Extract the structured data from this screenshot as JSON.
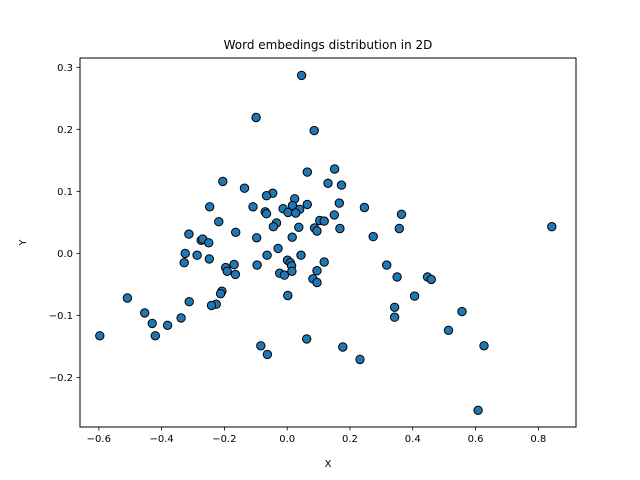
{
  "chart_data": {
    "type": "scatter",
    "title": "Word embedings distribution in 2D",
    "xlabel": "X",
    "ylabel": "Y",
    "xlim": [
      -0.66,
      0.92
    ],
    "ylim": [
      -0.28,
      0.315
    ],
    "xticks": [
      -0.6,
      -0.4,
      -0.2,
      0.0,
      0.2,
      0.4,
      0.6,
      0.8
    ],
    "xtick_labels": [
      "−0.6",
      "−0.4",
      "−0.2",
      "0.0",
      "0.2",
      "0.4",
      "0.6",
      "0.8"
    ],
    "yticks": [
      -0.2,
      -0.1,
      0.0,
      0.1,
      0.2,
      0.3
    ],
    "ytick_labels": [
      "−0.2",
      "−0.1",
      "0.0",
      "0.1",
      "0.2",
      "0.3"
    ],
    "grid": false,
    "marker_color": "#1f77b4",
    "marker_edge_color": "#000000",
    "points": [
      [
        0.046,
        0.287
      ],
      [
        -0.099,
        0.219
      ],
      [
        0.086,
        0.198
      ],
      [
        0.151,
        0.136
      ],
      [
        0.064,
        0.131
      ],
      [
        -0.205,
        0.116
      ],
      [
        0.13,
        0.113
      ],
      [
        0.173,
        0.11
      ],
      [
        -0.136,
        0.105
      ],
      [
        -0.046,
        0.097
      ],
      [
        -0.066,
        0.093
      ],
      [
        0.024,
        0.088
      ],
      [
        0.166,
        0.081
      ],
      [
        0.064,
        0.079
      ],
      [
        0.017,
        0.077
      ],
      [
        -0.247,
        0.075
      ],
      [
        -0.109,
        0.075
      ],
      [
        0.246,
        0.074
      ],
      [
        -0.013,
        0.072
      ],
      [
        0.04,
        0.071
      ],
      [
        -0.07,
        0.067
      ],
      [
        0.003,
        0.066
      ],
      [
        -0.066,
        0.064
      ],
      [
        0.027,
        0.065
      ],
      [
        0.364,
        0.063
      ],
      [
        0.15,
        0.062
      ],
      [
        0.104,
        0.053
      ],
      [
        0.118,
        0.052
      ],
      [
        -0.218,
        0.051
      ],
      [
        -0.034,
        0.049
      ],
      [
        -0.044,
        0.043
      ],
      [
        0.037,
        0.042
      ],
      [
        0.087,
        0.041
      ],
      [
        0.168,
        0.04
      ],
      [
        0.357,
        0.04
      ],
      [
        0.843,
        0.043
      ],
      [
        0.095,
        0.036
      ],
      [
        -0.313,
        0.031
      ],
      [
        -0.164,
        0.034
      ],
      [
        0.016,
        0.026
      ],
      [
        -0.097,
        0.025
      ],
      [
        0.274,
        0.027
      ],
      [
        -0.274,
        0.021
      ],
      [
        -0.269,
        0.023
      ],
      [
        -0.25,
        0.017
      ],
      [
        -0.029,
        0.008
      ],
      [
        -0.325,
        0.0
      ],
      [
        -0.064,
        -0.003
      ],
      [
        -0.287,
        -0.003
      ],
      [
        0.044,
        -0.003
      ],
      [
        -0.248,
        -0.009
      ],
      [
        0.001,
        -0.011
      ],
      [
        -0.328,
        -0.015
      ],
      [
        0.01,
        -0.015
      ],
      [
        0.118,
        -0.014
      ],
      [
        0.014,
        -0.02
      ],
      [
        -0.169,
        -0.018
      ],
      [
        -0.096,
        -0.019
      ],
      [
        0.317,
        -0.019
      ],
      [
        -0.196,
        -0.023
      ],
      [
        -0.191,
        -0.029
      ],
      [
        0.095,
        -0.028
      ],
      [
        0.015,
        -0.029
      ],
      [
        -0.024,
        -0.032
      ],
      [
        -0.009,
        -0.035
      ],
      [
        -0.165,
        -0.034
      ],
      [
        0.35,
        -0.038
      ],
      [
        0.447,
        -0.038
      ],
      [
        0.459,
        -0.042
      ],
      [
        0.082,
        -0.041
      ],
      [
        0.095,
        -0.047
      ],
      [
        -0.208,
        -0.061
      ],
      [
        -0.212,
        -0.065
      ],
      [
        0.002,
        -0.068
      ],
      [
        0.406,
        -0.069
      ],
      [
        -0.509,
        -0.072
      ],
      [
        -0.312,
        -0.078
      ],
      [
        -0.226,
        -0.082
      ],
      [
        -0.241,
        -0.084
      ],
      [
        0.342,
        -0.087
      ],
      [
        -0.454,
        -0.096
      ],
      [
        0.557,
        -0.094
      ],
      [
        0.342,
        -0.103
      ],
      [
        -0.338,
        -0.104
      ],
      [
        -0.43,
        -0.113
      ],
      [
        -0.381,
        -0.116
      ],
      [
        0.514,
        -0.124
      ],
      [
        -0.597,
        -0.133
      ],
      [
        -0.42,
        -0.133
      ],
      [
        0.062,
        -0.138
      ],
      [
        0.627,
        -0.149
      ],
      [
        -0.084,
        -0.149
      ],
      [
        0.177,
        -0.151
      ],
      [
        -0.063,
        -0.163
      ],
      [
        0.232,
        -0.171
      ],
      [
        0.608,
        -0.253
      ]
    ]
  }
}
